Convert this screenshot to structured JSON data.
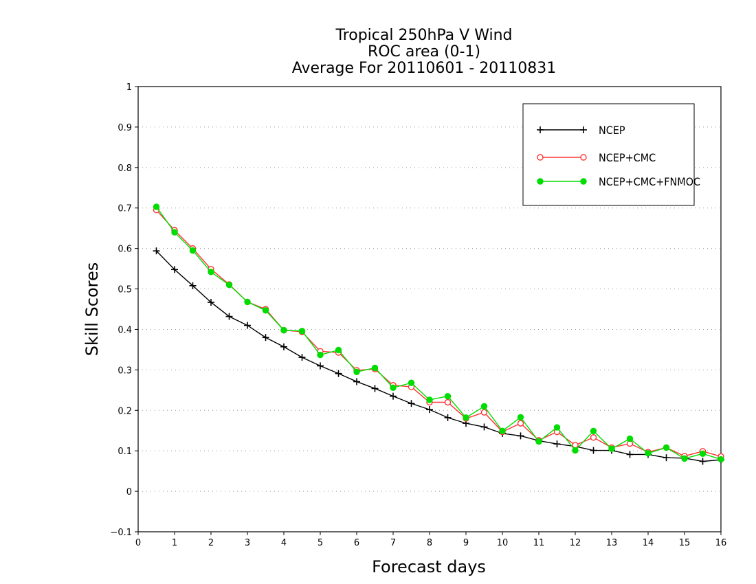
{
  "chart_data": {
    "type": "line",
    "title": [
      "Tropical 250hPa V Wind",
      "ROC area (0-1)",
      "Average For 20110601 - 20110831"
    ],
    "xlabel": "Forecast days",
    "ylabel": "Skill Scores",
    "xlim": [
      0,
      16
    ],
    "ylim": [
      -0.1,
      1
    ],
    "xticks": [
      "0",
      "1",
      "2",
      "3",
      "4",
      "5",
      "6",
      "7",
      "8",
      "9",
      "10",
      "11",
      "12",
      "13",
      "14",
      "15",
      "16"
    ],
    "yticks": [
      "−0.1",
      "0",
      "0.1",
      "0.2",
      "0.3",
      "0.4",
      "0.5",
      "0.6",
      "0.7",
      "0.8",
      "0.9",
      "1"
    ],
    "grid": true,
    "legend_position": "top-right",
    "x": [
      0.5,
      1,
      1.5,
      2,
      2.5,
      3,
      3.5,
      4,
      4.5,
      5,
      5.5,
      6,
      6.5,
      7,
      7.5,
      8,
      8.5,
      9,
      9.5,
      10,
      10.5,
      11,
      11.5,
      12,
      12.5,
      13,
      13.5,
      14,
      14.5,
      15,
      15.5,
      16
    ],
    "series": [
      {
        "name": "NCEP",
        "color": "#000000",
        "marker": "plus",
        "values": [
          0.594,
          0.548,
          0.508,
          0.467,
          0.432,
          0.41,
          0.38,
          0.357,
          0.331,
          0.31,
          0.291,
          0.271,
          0.254,
          0.235,
          0.217,
          0.202,
          0.182,
          0.168,
          0.159,
          0.143,
          0.137,
          0.125,
          0.117,
          0.111,
          0.101,
          0.101,
          0.091,
          0.091,
          0.083,
          0.082,
          0.074,
          0.078
        ]
      },
      {
        "name": "NCEP+CMC",
        "color": "#ff3333",
        "marker": "open-circle",
        "values": [
          0.695,
          0.645,
          0.6,
          0.549,
          0.511,
          0.468,
          0.45,
          0.398,
          0.394,
          0.346,
          0.343,
          0.299,
          0.302,
          0.262,
          0.258,
          0.22,
          0.22,
          0.18,
          0.195,
          0.147,
          0.168,
          0.126,
          0.147,
          0.114,
          0.133,
          0.108,
          0.118,
          0.097,
          0.108,
          0.087,
          0.099,
          0.086
        ]
      },
      {
        "name": "NCEP+CMC+FNMOC",
        "color": "#00dd00",
        "marker": "filled-circle",
        "values": [
          0.703,
          0.64,
          0.595,
          0.542,
          0.51,
          0.468,
          0.447,
          0.398,
          0.396,
          0.337,
          0.349,
          0.295,
          0.305,
          0.256,
          0.268,
          0.226,
          0.235,
          0.182,
          0.21,
          0.149,
          0.183,
          0.123,
          0.158,
          0.101,
          0.149,
          0.105,
          0.13,
          0.094,
          0.108,
          0.081,
          0.093,
          0.079
        ]
      }
    ]
  }
}
